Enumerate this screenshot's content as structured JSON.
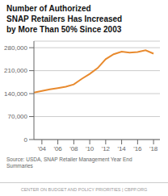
{
  "chart_data": {
    "type": "line",
    "title": "Number of Authorized\nSNAP Retailers Has Increased\nby More Than 50% Since 2003",
    "x": [
      2003,
      2004,
      2005,
      2006,
      2007,
      2008,
      2009,
      2010,
      2011,
      2012,
      2013,
      2014,
      2015,
      2016,
      2017,
      2018
    ],
    "values": [
      143000,
      148000,
      153000,
      157000,
      161000,
      168000,
      185000,
      200000,
      218000,
      245000,
      260000,
      268000,
      265000,
      267000,
      272000,
      262000
    ],
    "color": "#E88A2E",
    "xlim": [
      2003,
      2018.8
    ],
    "ylim": [
      0,
      300000
    ],
    "xticks": [
      {
        "value": 2004,
        "label": "'04"
      },
      {
        "value": 2006,
        "label": "'06"
      },
      {
        "value": 2008,
        "label": "'08"
      },
      {
        "value": 2010,
        "label": "'10"
      },
      {
        "value": 2012,
        "label": "'12"
      },
      {
        "value": 2014,
        "label": "'14"
      },
      {
        "value": 2016,
        "label": "'16"
      },
      {
        "value": 2018,
        "label": "'18"
      }
    ],
    "yticks": [
      0,
      {
        "value": 70000,
        "label": "70,000"
      },
      {
        "value": 140000,
        "label": "140,000"
      },
      {
        "value": 210000,
        "label": "210,000"
      },
      {
        "value": 280000,
        "label": "280,000"
      }
    ],
    "grid": true,
    "annotations": [
      "Source: USDA, SNAP Retailer Management Year End\nSummaries",
      "CENTER ON BUDGET AND POLICY PRIORITIES | CBPP.ORG"
    ]
  }
}
